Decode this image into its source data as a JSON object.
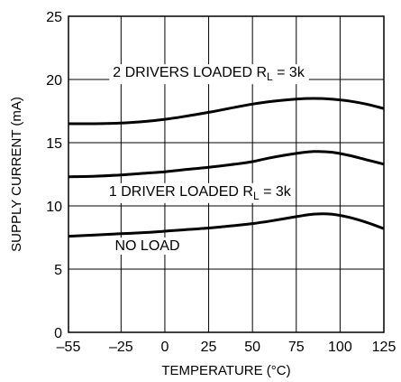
{
  "chart_data": {
    "type": "line",
    "title": "",
    "xlabel": "TEMPERATURE (°C)",
    "ylabel": "SUPPLY CURRENT (mA)",
    "xlim": [
      -55,
      125
    ],
    "ylim": [
      0,
      25
    ],
    "grid": true,
    "x_ticks": [
      "–55",
      "–25",
      "0",
      "25",
      "50",
      "75",
      "100",
      "125"
    ],
    "x_tick_values": [
      -55,
      -25,
      0,
      25,
      50,
      75,
      100,
      125
    ],
    "y_ticks": [
      "0",
      "5",
      "10",
      "15",
      "20",
      "25"
    ],
    "y_tick_values": [
      0,
      5,
      10,
      15,
      20,
      25
    ],
    "series": [
      {
        "label_main": "2 DRIVERS LOADED R",
        "label_sub": "L",
        "label_tail": " = 3k",
        "label_at": [
          25,
          20.2
        ],
        "x": [
          -55,
          -40,
          -25,
          -10,
          0,
          10,
          25,
          40,
          50,
          60,
          75,
          85,
          95,
          105,
          115,
          125
        ],
        "y": [
          16.5,
          16.5,
          16.55,
          16.7,
          16.85,
          17.05,
          17.4,
          17.8,
          18.05,
          18.25,
          18.45,
          18.5,
          18.45,
          18.3,
          18.05,
          17.7
        ]
      },
      {
        "label_main": "1 DRIVER LOADED R",
        "label_sub": "L",
        "label_tail": " = 3k",
        "label_at": [
          20,
          10.8
        ],
        "x": [
          -55,
          -40,
          -25,
          -10,
          0,
          10,
          25,
          40,
          50,
          60,
          75,
          85,
          95,
          105,
          115,
          125
        ],
        "y": [
          12.3,
          12.35,
          12.45,
          12.6,
          12.7,
          12.85,
          13.05,
          13.3,
          13.5,
          13.8,
          14.15,
          14.3,
          14.25,
          14.0,
          13.65,
          13.3
        ]
      },
      {
        "label_main": "NO LOAD",
        "label_sub": "",
        "label_tail": "",
        "label_at": [
          -10,
          6.5
        ],
        "x": [
          -55,
          -40,
          -25,
          -10,
          0,
          10,
          25,
          40,
          50,
          60,
          75,
          85,
          95,
          105,
          115,
          125
        ],
        "y": [
          7.6,
          7.7,
          7.8,
          7.9,
          8.0,
          8.1,
          8.25,
          8.45,
          8.6,
          8.8,
          9.15,
          9.35,
          9.35,
          9.1,
          8.7,
          8.2
        ]
      }
    ]
  }
}
